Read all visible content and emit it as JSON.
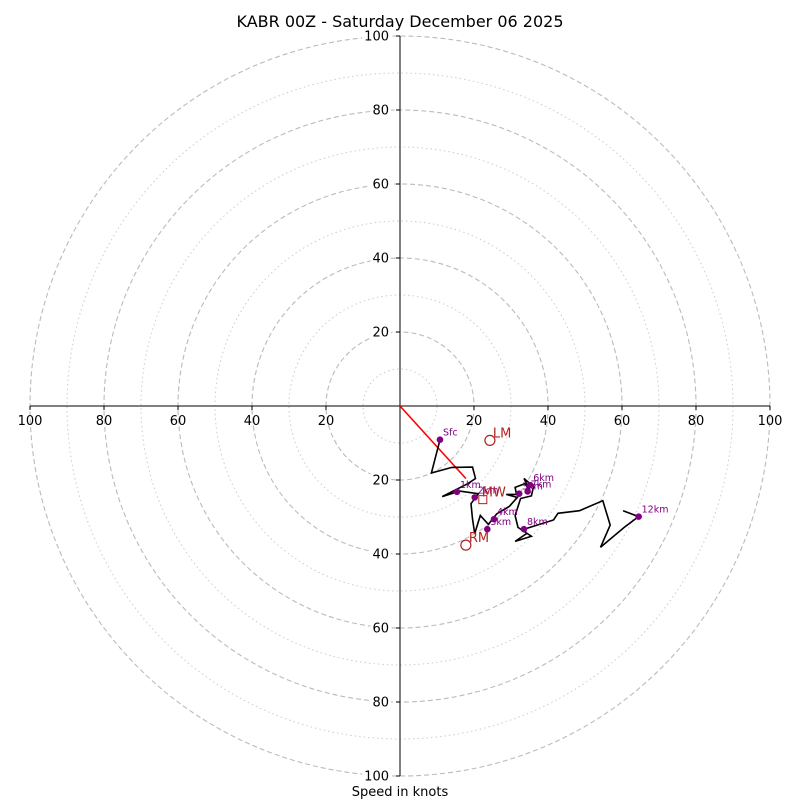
{
  "chart_data": {
    "type": "hodograph",
    "title": "KABR 00Z - Saturday December 06 2025",
    "xlabel": "Speed in knots",
    "ylabel": "",
    "xlim": [
      -100,
      100
    ],
    "ylim": [
      -100,
      100
    ],
    "rings_major": [
      20,
      40,
      60,
      80,
      100
    ],
    "rings_minor": [
      10,
      30,
      50,
      70,
      90
    ],
    "x_ticks": [
      {
        "value": -100,
        "label": "100"
      },
      {
        "value": -80,
        "label": "80"
      },
      {
        "value": -60,
        "label": "60"
      },
      {
        "value": -40,
        "label": "40"
      },
      {
        "value": -20,
        "label": "20"
      },
      {
        "value": 20,
        "label": "20"
      },
      {
        "value": 40,
        "label": "40"
      },
      {
        "value": 60,
        "label": "60"
      },
      {
        "value": 80,
        "label": "80"
      },
      {
        "value": 100,
        "label": "100"
      }
    ],
    "y_ticks": [
      {
        "value": 100,
        "label": "100"
      },
      {
        "value": 80,
        "label": "80"
      },
      {
        "value": 60,
        "label": "60"
      },
      {
        "value": 40,
        "label": "40"
      },
      {
        "value": 20,
        "label": "20"
      },
      {
        "value": -20,
        "label": "20"
      },
      {
        "value": -40,
        "label": "40"
      },
      {
        "value": -60,
        "label": "60"
      },
      {
        "value": -80,
        "label": "80"
      },
      {
        "value": -100,
        "label": "100"
      }
    ],
    "trace": [
      [
        10.8,
        -9.1
      ],
      [
        8.5,
        -18.1
      ],
      [
        14,
        -16.6
      ],
      [
        19.6,
        -16.5
      ],
      [
        20.4,
        -19.6
      ],
      [
        18.3,
        -21
      ],
      [
        11.4,
        -24.5
      ],
      [
        16.1,
        -23
      ],
      [
        21.2,
        -23.7
      ],
      [
        19.2,
        -26.4
      ],
      [
        19.6,
        -30.5
      ],
      [
        20.2,
        -34.5
      ],
      [
        21.7,
        -29.6
      ],
      [
        23.9,
        -32
      ],
      [
        26.1,
        -29.2
      ],
      [
        29.6,
        -27.1
      ],
      [
        31.7,
        -24.7
      ],
      [
        28.7,
        -23.9
      ],
      [
        31.5,
        -23.9
      ],
      [
        31.1,
        -22
      ],
      [
        33.7,
        -21
      ],
      [
        35.1,
        -22.8
      ],
      [
        33.5,
        -19.6
      ],
      [
        36.2,
        -21.9
      ],
      [
        35.9,
        -22.6
      ],
      [
        35.5,
        -24.3
      ],
      [
        32.6,
        -25
      ],
      [
        31.1,
        -29.6
      ],
      [
        31.9,
        -32.8
      ],
      [
        35.5,
        -35.2
      ],
      [
        31.1,
        -36.6
      ],
      [
        34.2,
        -34.5
      ],
      [
        33.5,
        -33.3
      ],
      [
        41.5,
        -30.8
      ],
      [
        42.7,
        -29
      ],
      [
        48.5,
        -28.3
      ],
      [
        54.8,
        -25.6
      ],
      [
        56.8,
        -32.2
      ],
      [
        54.2,
        -38.2
      ],
      [
        60.6,
        -32.8
      ],
      [
        64.5,
        -29.9
      ],
      [
        60.3,
        -28.3
      ]
    ],
    "height_points": [
      {
        "label": "Sfc",
        "x": 10.8,
        "y": -9.1
      },
      {
        "label": "1km",
        "x": 15.4,
        "y": -23.2
      },
      {
        "label": "2km",
        "x": 20.2,
        "y": -24.7
      },
      {
        "label": "3km",
        "x": 23.6,
        "y": -33.3
      },
      {
        "label": "4km",
        "x": 25.4,
        "y": -30.6
      },
      {
        "label": "5km",
        "x": 32.2,
        "y": -23.7
      },
      {
        "label": "6km",
        "x": 35.2,
        "y": -21.4
      },
      {
        "label": "7km",
        "x": 34.5,
        "y": -23.1
      },
      {
        "label": "8km",
        "x": 33.5,
        "y": -33.3
      },
      {
        "label": "12km",
        "x": 64.5,
        "y": -29.9
      }
    ],
    "storm_motion": [
      {
        "label": "LM",
        "x": 24.3,
        "y": -9.3,
        "marker": "circle"
      },
      {
        "label": "MW",
        "x": 21.3,
        "y": -24.5,
        "marker": "square"
      },
      {
        "label": "RM",
        "x": 17.8,
        "y": -37.6,
        "marker": "circle"
      }
    ],
    "shear_vector": {
      "from": [
        0,
        0
      ],
      "to": [
        17.8,
        -19.6
      ]
    },
    "colors": {
      "trace": "#000000",
      "height_points": "#800080",
      "storm_motion": "#b22222",
      "shear_vector": "#ff0000",
      "rings": "#bbbbbb"
    }
  }
}
